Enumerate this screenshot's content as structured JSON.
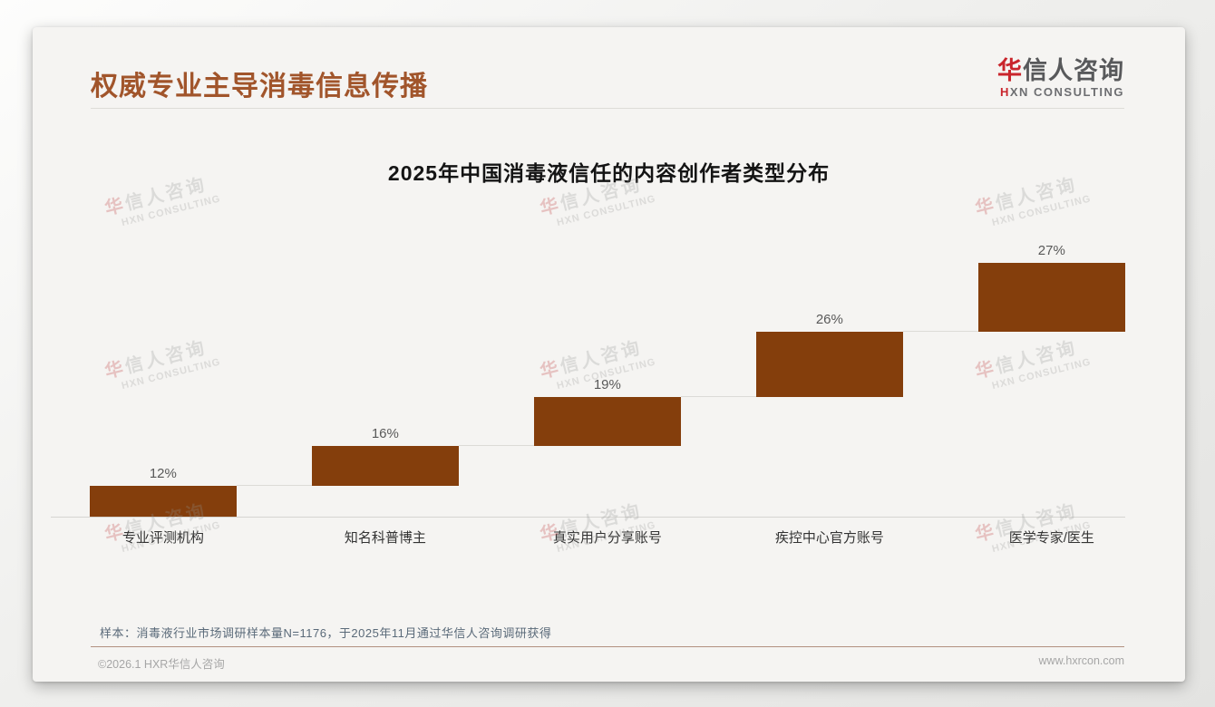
{
  "page": {
    "title": "权威专业主导消毒信息传播",
    "footnote": "样本：消毒液行业市场调研样本量N=1176，于2025年11月通过华信人咨询调研获得",
    "footer_left": "©2026.1 HXR华信人咨询",
    "footer_right": "www.hxrcon.com"
  },
  "logo": {
    "zh_accent": "华",
    "zh_rest": "信人咨询",
    "en_accent": "H",
    "en_rest": "XN CONSULTING"
  },
  "watermark": {
    "zh_accent": "华",
    "zh_rest": "信人咨询",
    "en": "HXN CONSULTING"
  },
  "chart_data": {
    "type": "bar",
    "variant": "waterfall-steps",
    "title": "2025年中国消毒液信任的内容创作者类型分布",
    "categories": [
      "专业评测机构",
      "知名科普博主",
      "真实用户分享账号",
      "疾控中心官方账号",
      "医学专家/医生"
    ],
    "values": [
      12,
      16,
      19,
      26,
      27
    ],
    "labels": [
      "12%",
      "16%",
      "19%",
      "26%",
      "27%"
    ],
    "cumulative": [
      12,
      28,
      47,
      73,
      100
    ],
    "ylim": [
      0,
      100
    ],
    "xlabel": "",
    "ylabel": "",
    "grid": false,
    "legend_position": "none",
    "bar_color": "#843e0c",
    "value_label_color": "#595959",
    "category_label_color": "#333333"
  },
  "colors": {
    "page_title": "#a1552b",
    "card_background": "#f5f4f2",
    "logo_accent_red": "#c9252c",
    "axis_line": "#d6d5d1",
    "footer_divider": "#b29180",
    "footnote_text": "#5a6a79",
    "footer_text": "#a6a6a6"
  }
}
